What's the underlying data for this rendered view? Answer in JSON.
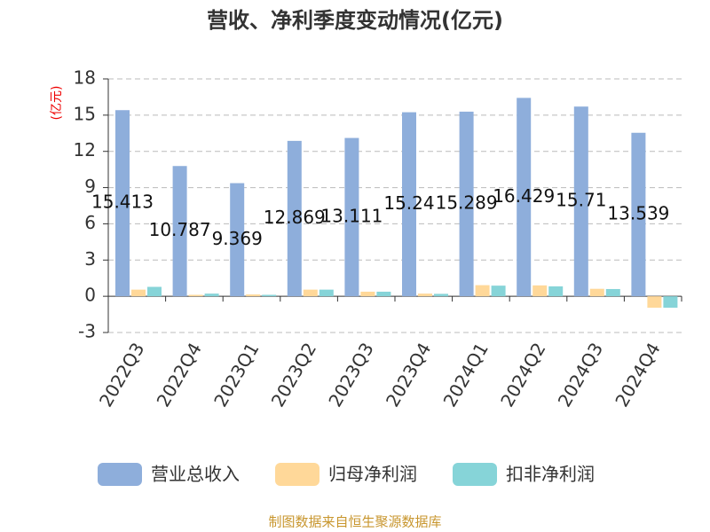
{
  "chart_data": {
    "type": "bar",
    "title": "营收、净利季度变动情况(亿元)",
    "y_label": "(亿元)",
    "source": "制图数据来自恒生聚源数据库",
    "categories": [
      "2022Q3",
      "2022Q4",
      "2023Q1",
      "2023Q2",
      "2023Q3",
      "2023Q4",
      "2024Q1",
      "2024Q2",
      "2024Q3",
      "2024Q4"
    ],
    "series": [
      {
        "name": "营业总收入",
        "color": "#8eaedb",
        "values": [
          15.413,
          10.787,
          9.369,
          12.869,
          13.111,
          15.24,
          15.289,
          16.429,
          15.71,
          13.539
        ]
      },
      {
        "name": "归母净利润",
        "color": "#ffd899",
        "values": [
          0.55,
          0.12,
          0.15,
          0.55,
          0.38,
          0.22,
          0.92,
          0.9,
          0.62,
          -0.95
        ]
      },
      {
        "name": "扣非净利润",
        "color": "#86d4d8",
        "values": [
          0.78,
          0.22,
          0.12,
          0.55,
          0.38,
          0.2,
          0.88,
          0.82,
          0.6,
          -0.95
        ]
      }
    ],
    "ylim": [
      -3,
      18
    ],
    "yticks": [
      -3,
      0,
      3,
      6,
      9,
      12,
      15,
      18
    ],
    "grid": true
  }
}
